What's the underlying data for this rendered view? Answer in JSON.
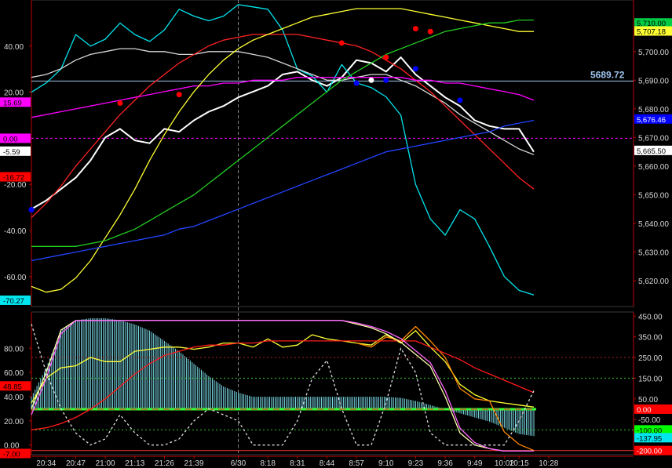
{
  "chart_data": [
    {
      "type": "line",
      "pane": "price",
      "title": "",
      "y_left": {
        "ylim": [
          -73,
          60
        ],
        "ticks": [
          40,
          20,
          -20,
          -40,
          -60
        ],
        "tick_labels": [
          "40.00",
          "20.00",
          "-20.00",
          "-40.00",
          "-60.00"
        ]
      },
      "y_right": {
        "ylim": [
          5611,
          5718
        ],
        "ticks": [
          5700,
          5690,
          5680,
          5670,
          5660,
          5650,
          5640,
          5630,
          5620
        ],
        "tick_labels": [
          "5,700.00",
          "5,690.00",
          "5,680.00",
          "5,670.00",
          "5,660.00",
          "5,650.00",
          "5,640.00",
          "5,630.00",
          "5,620.00"
        ]
      },
      "price_line": {
        "value": 5689.72,
        "label": "5689.72",
        "color": "#9fc6ef"
      },
      "left_markers": [
        {
          "value": 15.69,
          "label": "15.69",
          "color": "#ff00ff"
        },
        {
          "value": 0.0,
          "label": "0.00",
          "color": "#ff00ff"
        },
        {
          "value": -5.59,
          "label": "-5.59",
          "color": "#ffffff"
        },
        {
          "value": -16.72,
          "label": "-16.72",
          "color": "#ff0000"
        },
        {
          "value": -70.27,
          "label": "-70.27",
          "color": "#00e5ee"
        }
      ],
      "right_markers": [
        {
          "value": 5710.0,
          "label": "5,710.00",
          "color": "#00cc44"
        },
        {
          "value": 5707.18,
          "label": "5,707.18",
          "color": "#ffff33"
        },
        {
          "value": 5676.46,
          "label": "5,676.46",
          "color": "#0000ff"
        },
        {
          "value": 5665.5,
          "label": "5,665.50",
          "color": "#ffffff"
        }
      ],
      "series": [
        {
          "color": "#ffffff",
          "axis": "right",
          "values": [
            5645,
            5648,
            5652,
            5656,
            5662,
            5670,
            5673,
            5669,
            5668,
            5673,
            5672,
            5676,
            5679,
            5681,
            5684,
            5686,
            5688,
            5692,
            5693,
            5690,
            5688,
            5691,
            5697,
            5696,
            5693,
            5698,
            5692,
            5688,
            5684,
            5681,
            5676,
            5674,
            5673,
            5673,
            5665
          ]
        },
        {
          "color": "#00e5ee",
          "axis": "left",
          "values": [
            20,
            24,
            30,
            45,
            40,
            43,
            50,
            45,
            42,
            47,
            56,
            53,
            51,
            53,
            58,
            57,
            56,
            47,
            30,
            27,
            20,
            32,
            24,
            22,
            18,
            10,
            -20,
            -35,
            -42,
            -31,
            -35,
            -47,
            -60,
            -66,
            -68
          ]
        },
        {
          "color": "#d8d8d8",
          "axis": "right",
          "values": [
            5691,
            5692,
            5694,
            5697,
            5699,
            5700,
            5701,
            5701,
            5700,
            5700,
            5699,
            5699,
            5700,
            5700,
            5700,
            5699,
            5698,
            5696,
            5694,
            5692,
            5690,
            5690,
            5691,
            5692,
            5692,
            5690,
            5688,
            5685,
            5682,
            5678,
            5675,
            5672,
            5669,
            5666,
            5664
          ]
        },
        {
          "color": "#ff2222",
          "axis": "right",
          "values": [
            5642,
            5647,
            5653,
            5660,
            5666,
            5672,
            5678,
            5683,
            5688,
            5692,
            5696,
            5699,
            5702,
            5704,
            5705,
            5706,
            5706,
            5706,
            5706,
            5705,
            5704,
            5703,
            5702,
            5700,
            5697,
            5694,
            5690,
            5686,
            5681,
            5676,
            5671,
            5666,
            5661,
            5656,
            5652
          ]
        },
        {
          "color": "#ff00ff",
          "axis": "right",
          "values": [
            5677,
            5678,
            5679,
            5680,
            5681,
            5682,
            5683,
            5684,
            5685,
            5686,
            5687,
            5688,
            5688,
            5689,
            5689,
            5690,
            5690,
            5690,
            5691,
            5691,
            5691,
            5691,
            5691,
            5691,
            5691,
            5691,
            5690,
            5690,
            5689,
            5689,
            5688,
            5687,
            5686,
            5685,
            5683
          ]
        },
        {
          "color": "#ffff33",
          "axis": "right",
          "values": [
            5618,
            5616,
            5617,
            5621,
            5627,
            5635,
            5643,
            5652,
            5662,
            5671,
            5679,
            5686,
            5692,
            5697,
            5701,
            5704,
            5706,
            5708,
            5710,
            5712,
            5713,
            5714,
            5715,
            5715,
            5715,
            5715,
            5714,
            5713,
            5712,
            5711,
            5710,
            5709,
            5708,
            5707,
            5707
          ]
        },
        {
          "color": "#22cc22",
          "axis": "right",
          "values": [
            5632,
            5632,
            5632,
            5632,
            5633,
            5634,
            5636,
            5638,
            5641,
            5644,
            5647,
            5650,
            5654,
            5658,
            5662,
            5666,
            5670,
            5674,
            5678,
            5682,
            5686,
            5690,
            5693,
            5696,
            5699,
            5701,
            5703,
            5705,
            5707,
            5708,
            5709,
            5710,
            5710,
            5711,
            5711
          ]
        },
        {
          "color": "#2244ff",
          "axis": "right",
          "values": [
            5627,
            5628,
            5629,
            5630,
            5631,
            5632,
            5633,
            5634,
            5635,
            5636,
            5638,
            5639,
            5641,
            5643,
            5645,
            5647,
            5649,
            5651,
            5653,
            5655,
            5657,
            5659,
            5661,
            5663,
            5665,
            5666,
            5667,
            5668,
            5669,
            5670,
            5671,
            5672,
            5674,
            5675,
            5676
          ]
        }
      ],
      "dots": [
        {
          "i": 6,
          "axis": "right",
          "v": 5682,
          "color": "#ff0000"
        },
        {
          "i": 10,
          "axis": "right",
          "v": 5685,
          "color": "#ff0000"
        },
        {
          "i": 21,
          "axis": "right",
          "v": 5703,
          "color": "#ff0000"
        },
        {
          "i": 24,
          "axis": "right",
          "v": 5698,
          "color": "#ff0000"
        },
        {
          "i": 26,
          "axis": "right",
          "v": 5708,
          "color": "#ff0000"
        },
        {
          "i": 27,
          "axis": "right",
          "v": 5707,
          "color": "#ff0000"
        },
        {
          "i": 0,
          "axis": "left",
          "v": -31,
          "color": "#0000ff"
        },
        {
          "i": 22,
          "axis": "right",
          "v": 5689,
          "color": "#0000ff"
        },
        {
          "i": 23,
          "axis": "right",
          "v": 5690,
          "color": "#ffffff"
        },
        {
          "i": 24,
          "axis": "right",
          "v": 5690,
          "color": "#0000ff"
        },
        {
          "i": 26,
          "axis": "right",
          "v": 5694,
          "color": "#0000ff"
        },
        {
          "i": 29,
          "axis": "right",
          "v": 5683,
          "color": "#0000ff"
        }
      ]
    },
    {
      "type": "line",
      "pane": "oscillator",
      "title": "",
      "y_left": {
        "ylim": [
          -8,
          110
        ],
        "ticks": [
          80,
          60,
          40,
          20,
          0
        ],
        "tick_labels": [
          "80.00",
          "60.00",
          "40.00",
          "20.00",
          "0.00"
        ]
      },
      "y_right": {
        "ylim": [
          -220,
          470
        ],
        "ticks": [
          450,
          350,
          250,
          150,
          50,
          -50
        ],
        "tick_labels": [
          "450.00",
          "350.00",
          "250.00",
          "150.00",
          "50.00",
          "-50.00"
        ]
      },
      "left_markers": [
        {
          "value": 48.85,
          "label": "48.85",
          "color": "#ff0000"
        },
        {
          "value": -7.0,
          "label": "-7.00",
          "color": "#ff0000"
        }
      ],
      "right_markers": [
        {
          "value": 0.0,
          "label": "0.00",
          "color": "#ff0000"
        },
        {
          "value": -100.0,
          "label": "-100.00",
          "color": "#00ff00"
        },
        {
          "value": -137.95,
          "label": "-137.95",
          "color": "#00e5ee"
        },
        {
          "value": -200.0,
          "label": "-200.00",
          "color": "#ff0000"
        }
      ],
      "histogram": {
        "color": "#7fe0ee",
        "axis": "right",
        "baseline": 0,
        "values": [
          60,
          200,
          380,
          430,
          440,
          440,
          430,
          410,
          380,
          330,
          280,
          220,
          160,
          110,
          80,
          60,
          60,
          60,
          60,
          60,
          60,
          60,
          60,
          60,
          60,
          55,
          40,
          20,
          0,
          -20,
          -40,
          -60,
          -90,
          -120,
          -130
        ]
      },
      "series": [
        {
          "color": "#ffff33",
          "axis": "right",
          "values": [
            30,
            150,
            200,
            210,
            250,
            230,
            230,
            280,
            290,
            300,
            300,
            290,
            300,
            320,
            320,
            300,
            340,
            300,
            310,
            360,
            340,
            330,
            320,
            310,
            360,
            320,
            380,
            300,
            230,
            120,
            70,
            40,
            30,
            20,
            10
          ]
        },
        {
          "color": "#ff8800",
          "axis": "right",
          "values": [
            null,
            null,
            null,
            null,
            null,
            null,
            null,
            null,
            null,
            null,
            null,
            null,
            null,
            null,
            null,
            null,
            null,
            null,
            null,
            null,
            null,
            null,
            320,
            300,
            350,
            330,
            400,
            330,
            250,
            100,
            50,
            40,
            -110,
            -170,
            -200
          ]
        },
        {
          "color": "#ff1a1a",
          "axis": "right",
          "values": [
            -100,
            -90,
            -70,
            -40,
            0,
            50,
            110,
            170,
            220,
            260,
            280,
            300,
            310,
            310,
            320,
            320,
            330,
            330,
            330,
            330,
            330,
            330,
            330,
            330,
            330,
            330,
            330,
            300,
            270,
            240,
            200,
            170,
            140,
            110,
            80
          ]
        },
        {
          "color": "#ffffaa",
          "axis": "left",
          "values": [
            30,
            60,
            95,
            103,
            103,
            103,
            103,
            103,
            103,
            103,
            103,
            103,
            103,
            103,
            103,
            103,
            103,
            103,
            103,
            103,
            103,
            103,
            100,
            97,
            92,
            85,
            75,
            65,
            40,
            10,
            0,
            -3,
            -5,
            -5,
            -5
          ]
        },
        {
          "color": "#ff66ff",
          "axis": "left",
          "values": [
            25,
            55,
            92,
            103,
            103,
            103,
            103,
            103,
            103,
            103,
            103,
            103,
            103,
            103,
            103,
            103,
            103,
            103,
            103,
            103,
            103,
            103,
            101,
            98,
            94,
            88,
            78,
            68,
            45,
            14,
            2,
            -3,
            -5,
            -5,
            -5
          ]
        },
        {
          "color": "#dddddd",
          "dash": true,
          "axis": "left",
          "values": [
            100,
            60,
            30,
            10,
            0,
            5,
            25,
            10,
            0,
            0,
            5,
            20,
            30,
            25,
            20,
            0,
            0,
            0,
            20,
            55,
            70,
            30,
            0,
            0,
            35,
            80,
            60,
            10,
            0,
            0,
            0,
            0,
            0,
            20,
            45
          ]
        }
      ]
    }
  ],
  "x_axis": {
    "n": 35,
    "ticks": [
      {
        "i": 1,
        "label": "20:34"
      },
      {
        "i": 3,
        "label": "20:47"
      },
      {
        "i": 5,
        "label": "21:00"
      },
      {
        "i": 7,
        "label": "21:13"
      },
      {
        "i": 9,
        "label": "21:26"
      },
      {
        "i": 11,
        "label": "21:39"
      },
      {
        "i": 14,
        "label": "6/30"
      },
      {
        "i": 16,
        "label": "8:18"
      },
      {
        "i": 18,
        "label": "8:31"
      },
      {
        "i": 20,
        "label": "8:44"
      },
      {
        "i": 22,
        "label": "8:57"
      },
      {
        "i": 24,
        "label": "9:10"
      },
      {
        "i": 26,
        "label": "9:23"
      },
      {
        "i": 28,
        "label": "9:36"
      },
      {
        "i": 30,
        "label": "9:49"
      },
      {
        "i": 32,
        "label": "10:02"
      },
      {
        "i": 33,
        "label": "10:15"
      },
      {
        "i": 35,
        "label": "10:28"
      }
    ],
    "session_divider": 14
  }
}
